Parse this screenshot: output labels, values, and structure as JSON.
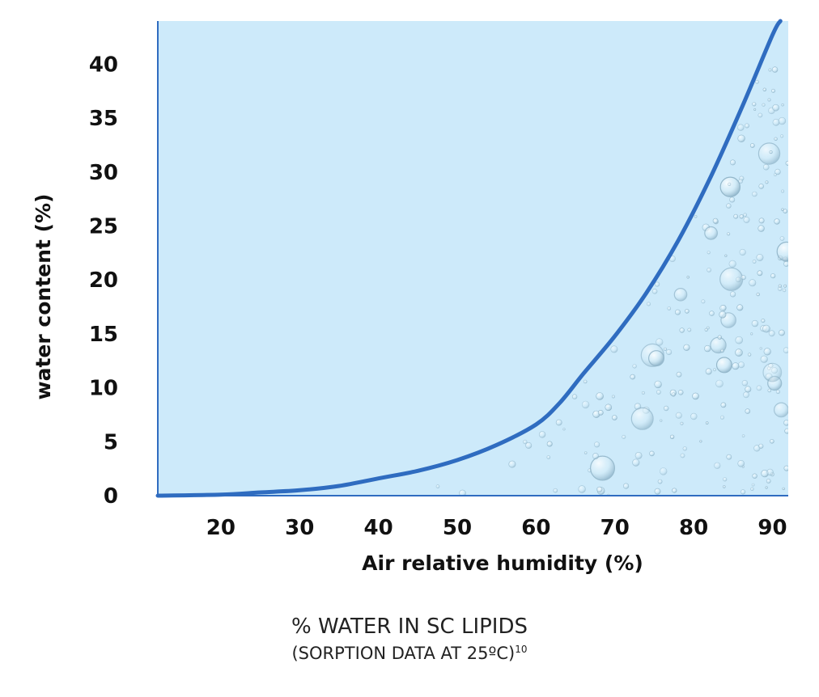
{
  "chart_data": {
    "type": "area",
    "xlabel": "Air relative humidity (%)",
    "ylabel": "water content (%)",
    "xlim": [
      12,
      92
    ],
    "ylim": [
      0,
      44
    ],
    "x_ticks": [
      20,
      30,
      40,
      50,
      60,
      70,
      80,
      90
    ],
    "y_ticks": [
      0,
      5,
      10,
      15,
      20,
      25,
      30,
      35,
      40
    ],
    "grid": false,
    "series": [
      {
        "x": [
          12,
          20,
          25,
          30,
          35,
          40,
          45,
          50,
          55,
          60,
          63,
          66,
          70,
          74,
          78,
          82,
          86,
          90,
          91
        ],
        "y": [
          0,
          0.1,
          0.3,
          0.5,
          0.9,
          1.6,
          2.3,
          3.3,
          4.7,
          6.6,
          8.6,
          11.3,
          14.8,
          18.8,
          23.6,
          29.3,
          35.8,
          42.7,
          44
        ]
      }
    ],
    "colors": {
      "fill": "#cdeafa",
      "line": "#2f6cc0",
      "frame": "#2f6cc0"
    }
  },
  "caption": {
    "line1": "% WATER IN SC LIPIDS",
    "line2": "(SORPTION DATA AT 25ºC)",
    "line2_sup": "10"
  }
}
